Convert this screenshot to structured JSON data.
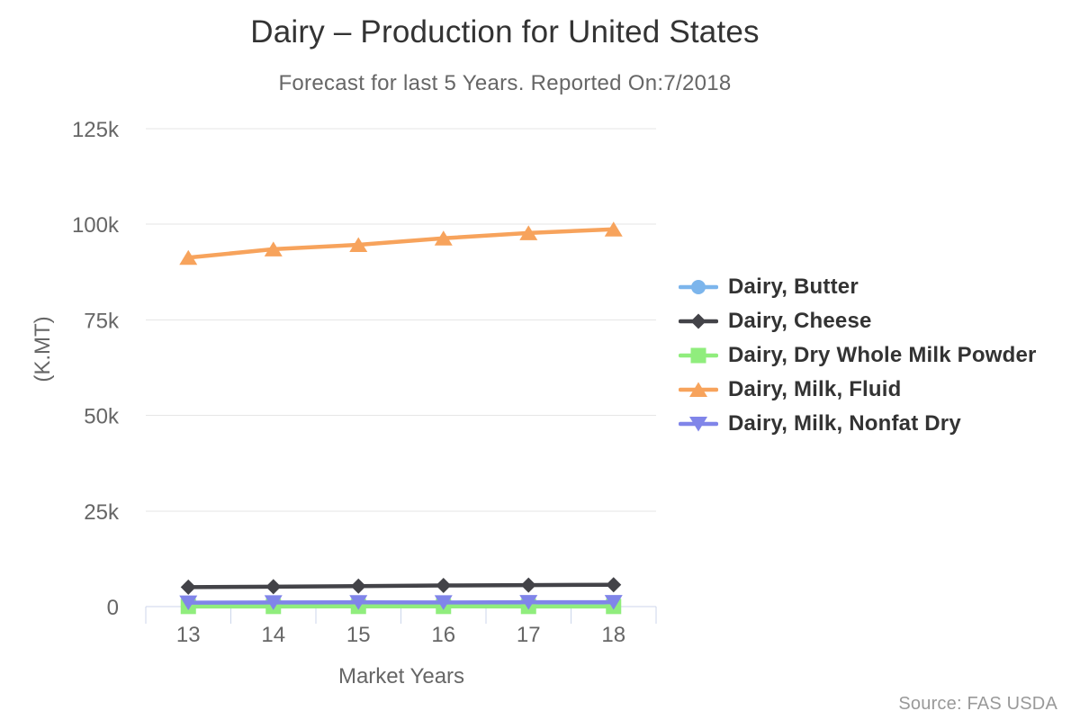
{
  "chart_data": {
    "type": "line",
    "title": "Dairy – Production for United States",
    "subtitle": "Forecast for last 5 Years. Reported On:7/2018",
    "xlabel": "Market Years",
    "ylabel": "(K.MT)",
    "source": "Source: FAS USDA",
    "categories": [
      "13",
      "14",
      "15",
      "16",
      "17",
      "18"
    ],
    "ylim": [
      0,
      125000
    ],
    "ytick_values": [
      0,
      25000,
      50000,
      75000,
      100000,
      125000
    ],
    "ytick_labels": [
      "0",
      "25k",
      "50k",
      "75k",
      "100k",
      "125k"
    ],
    "grid": true,
    "legend_position": "right",
    "series": [
      {
        "name": "Dairy, Butter",
        "color": "#7cb5ec",
        "marker": "circle",
        "values": [
          845,
          848,
          861,
          884,
          893,
          907
        ]
      },
      {
        "name": "Dairy, Cheese",
        "color": "#434348",
        "marker": "diamond",
        "values": [
          5100,
          5210,
          5350,
          5520,
          5630,
          5720
        ]
      },
      {
        "name": "Dairy, Dry Whole Milk Powder",
        "color": "#90ed7d",
        "marker": "square",
        "values": [
          40,
          44,
          48,
          46,
          42,
          40
        ]
      },
      {
        "name": "Dairy, Milk, Fluid",
        "color": "#f7a35c",
        "marker": "triangle",
        "values": [
          91277,
          93485,
          94620,
          96343,
          97735,
          98690
        ]
      },
      {
        "name": "Dairy, Milk, Nonfat Dry",
        "color": "#8085e9",
        "marker": "triangle-down",
        "values": [
          1020,
          1075,
          1130,
          1090,
          1135,
          1160
        ]
      }
    ],
    "colors": {
      "grid_line": "#e6e6e6",
      "axis_line": "#ccd6eb",
      "title_text": "#333333",
      "subtitle_text": "#666666",
      "axis_label_text": "#666666",
      "legend_text": "#333333",
      "source_text": "#999999",
      "background": "#ffffff"
    }
  }
}
